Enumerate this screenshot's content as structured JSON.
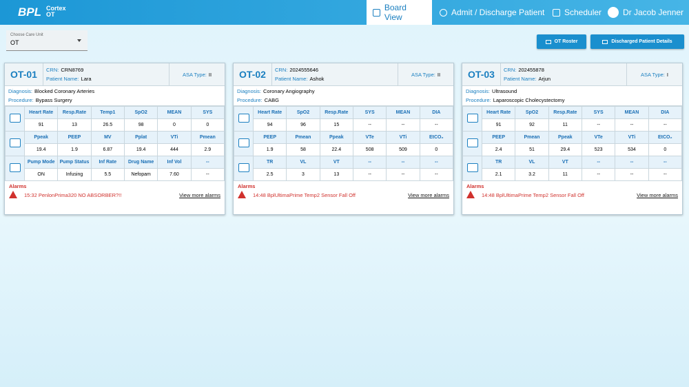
{
  "header": {
    "brand": "BPL",
    "product": "Cortex",
    "sub": "OT",
    "nav": [
      "Board View",
      "Admit / Discharge Patient",
      "Scheduler",
      "Dr Jacob Jenner"
    ]
  },
  "toolbar": {
    "care_unit_label": "Choose Care Unit",
    "care_unit": "OT",
    "buttons": [
      "OT Roster",
      "Discharged Patient Details"
    ]
  },
  "cards": [
    {
      "id": "OT-01",
      "crn_label": "CRN:",
      "crn": "CRN8769",
      "patient_label": "Patient Name:",
      "patient": "Lara",
      "asa_label": "ASA Type:",
      "asa": "II",
      "diagnosis_label": "Diagnosis:",
      "diagnosis": "Blocked Coronary Arteries",
      "procedure_label": "Procedure:",
      "procedure": "Bypass Surgery",
      "rows": [
        {
          "headers": [
            "Heart Rate",
            "Resp.Rate",
            "Temp1",
            "SpO2",
            "MEAN",
            "SYS"
          ],
          "values": [
            "91",
            "13",
            "26.5",
            "98",
            "0",
            "0"
          ]
        },
        {
          "headers": [
            "Ppeak",
            "PEEP",
            "MV",
            "Pplat",
            "VTi",
            "Pmean"
          ],
          "values": [
            "19.4",
            "1.9",
            "6.87",
            "19.4",
            "444",
            "2.9"
          ]
        },
        {
          "headers": [
            "Pump Mode",
            "Pump Status",
            "Inf Rate",
            "Drug Name",
            "Inf Vol",
            "--"
          ],
          "values": [
            "ON",
            "Infusing",
            "5.5",
            "Nefopam",
            "7.60",
            "--"
          ]
        }
      ],
      "alarms_label": "Alarms",
      "alarm": "15:32 PenlonPrima320 NO ABSORBER?!!",
      "more": "View more alarms"
    },
    {
      "id": "OT-02",
      "crn_label": "CRN:",
      "crn": "2024555646",
      "patient_label": "Patient Name:",
      "patient": "Ashok",
      "asa_label": "ASA Type:",
      "asa": "II",
      "diagnosis_label": "Diagnosis:",
      "diagnosis": "Coronary Angiography",
      "procedure_label": "Procedure:",
      "procedure": "CABG",
      "rows": [
        {
          "headers": [
            "Heart Rate",
            "SpO2",
            "Resp.Rate",
            "SYS",
            "MEAN",
            "DIA"
          ],
          "values": [
            "94",
            "96",
            "15",
            "--",
            "--",
            "--"
          ]
        },
        {
          "headers": [
            "PEEP",
            "Pmean",
            "Ppeak",
            "VTe",
            "VTi",
            "EtCO₂"
          ],
          "values": [
            "1.9",
            "58",
            "22.4",
            "508",
            "509",
            "0"
          ]
        },
        {
          "headers": [
            "TR",
            "VL",
            "VT",
            "--",
            "--",
            "--"
          ],
          "values": [
            "2.5",
            "3",
            "13",
            "--",
            "--",
            "--"
          ]
        }
      ],
      "alarms_label": "Alarms",
      "alarm": "14:48 BplUltimaPrime Temp2 Sensor Fall Off",
      "more": "View more alarms"
    },
    {
      "id": "OT-03",
      "crn_label": "CRN:",
      "crn": "202455878",
      "patient_label": "Patient Name:",
      "patient": "Arjun",
      "asa_label": "ASA Type:",
      "asa": "I",
      "diagnosis_label": "Diagnosis:",
      "diagnosis": "Ultrasound",
      "procedure_label": "Procedure:",
      "procedure": "Laparoscopic Cholecystectomy",
      "rows": [
        {
          "headers": [
            "Heart Rate",
            "SpO2",
            "Resp.Rate",
            "SYS",
            "MEAN",
            "DIA"
          ],
          "values": [
            "91",
            "92",
            "11",
            "--",
            "--",
            "--"
          ]
        },
        {
          "headers": [
            "PEEP",
            "Pmean",
            "Ppeak",
            "VTe",
            "VTi",
            "EtCO₂"
          ],
          "values": [
            "2.4",
            "51",
            "29.4",
            "523",
            "534",
            "0"
          ]
        },
        {
          "headers": [
            "TR",
            "VL",
            "VT",
            "--",
            "--",
            "--"
          ],
          "values": [
            "2.1",
            "3.2",
            "11",
            "--",
            "--",
            "--"
          ]
        }
      ],
      "alarms_label": "Alarms",
      "alarm": "14:48 BplUltimaPrime Temp2 Sensor Fall Off",
      "more": "View more alarms"
    }
  ]
}
